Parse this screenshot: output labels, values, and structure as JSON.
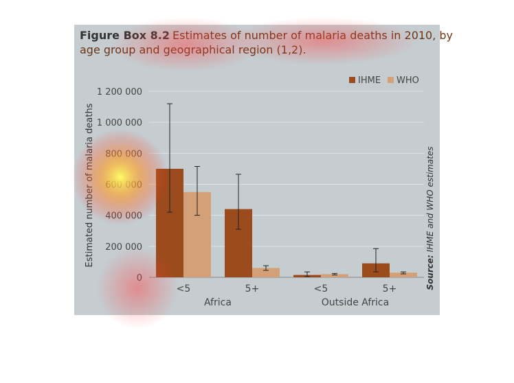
{
  "chart_data": {
    "type": "bar",
    "title_label": "Figure Box 8.2",
    "title": "Estimates of number of malaria deaths in 2010, by age group and geographical region (1,2).",
    "y_label": "Estimated number of malaria deaths",
    "source_label": "Source:",
    "source": "IHME and WHO estimates",
    "categories": [
      "<5",
      "5+",
      "<5",
      "5+"
    ],
    "groups": [
      "Africa",
      "Outside Africa"
    ],
    "series": [
      {
        "name": "IHME",
        "color": "#9b4b1c",
        "values": [
          700000,
          440000,
          15000,
          90000
        ],
        "lower": [
          420000,
          310000,
          5000,
          35000
        ],
        "upper": [
          1120000,
          665000,
          35000,
          185000
        ]
      },
      {
        "name": "WHO",
        "color": "#d3a077",
        "values": [
          550000,
          60000,
          20000,
          30000
        ],
        "lower": [
          400000,
          45000,
          15000,
          22000
        ],
        "upper": [
          715000,
          75000,
          25000,
          35000
        ]
      }
    ],
    "ylim": [
      0,
      1200000
    ],
    "yticks": [
      0,
      {
        "value": 200000,
        "label": "200 000"
      },
      {
        "value": 400000,
        "label": "400 000"
      },
      {
        "value": 600000,
        "label": "600 000"
      },
      {
        "value": 800000,
        "label": "800 000"
      },
      {
        "value": 1000000,
        "label": "1 000 000"
      },
      {
        "value": 1200000,
        "label": "1 200 000"
      }
    ],
    "grid": true,
    "legend": "top-right"
  }
}
